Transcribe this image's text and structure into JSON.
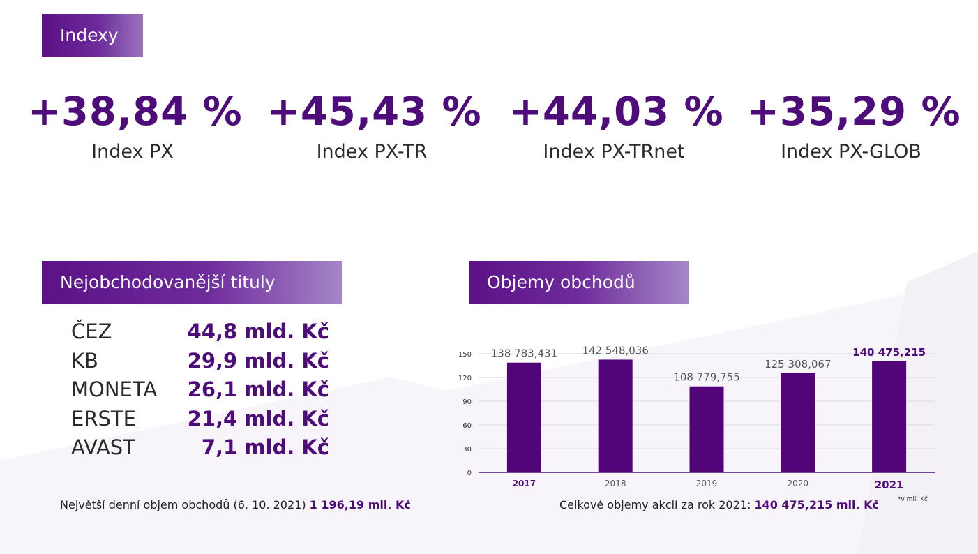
{
  "sections": {
    "indexes_title": "Indexy",
    "top_titles_title": "Nejobchodovanější tituly",
    "volumes_title": "Objemy obchodů"
  },
  "indexes": [
    {
      "value": "+38,84 %",
      "label": "Index PX"
    },
    {
      "value": "+45,43 %",
      "label": "Index PX-TR"
    },
    {
      "value": "+44,03 %",
      "label": "Index PX-TRnet"
    },
    {
      "value": "+35,29 %",
      "label": "Index PX-GLOB"
    }
  ],
  "top_titles": [
    {
      "name": "ČEZ",
      "value": "44,8 mld. Kč"
    },
    {
      "name": "KB",
      "value": "29,9 mld. Kč"
    },
    {
      "name": "MONETA",
      "value": "26,1 mld. Kč"
    },
    {
      "name": "ERSTE",
      "value": "21,4 mld. Kč"
    },
    {
      "name": "AVAST",
      "value": "7,1 mld. Kč"
    }
  ],
  "footnotes": {
    "left_prefix": "Největší denní objem obchodů (6. 10. 2021)",
    "left_value": "1 196,19 mil. Kč",
    "right_prefix": "Celkové objemy akcií za rok 2021:",
    "right_value": "140 475,215 mil. Kč"
  },
  "colors": {
    "brand": "#4e0c7b",
    "bar": "#520479",
    "grid": "#d9d9d9"
  },
  "chart_data": {
    "type": "bar",
    "title": "Objemy obchodů",
    "categories": [
      "2017",
      "2018",
      "2019",
      "2020",
      "2021"
    ],
    "values": [
      138.783431,
      142.548036,
      108.779755,
      125.308067,
      140.475215
    ],
    "data_labels": [
      "138 783,431",
      "142 548,036",
      "108 779,755",
      "125 308,067",
      "140 475,215"
    ],
    "highlighted_categories": [
      "2017",
      "2021"
    ],
    "yticks": [
      0,
      30,
      60,
      90,
      120,
      150
    ],
    "ylim": [
      0,
      150
    ],
    "grid": true,
    "unit_note": "*v mil. Kč",
    "xlabel": "",
    "ylabel": ""
  }
}
